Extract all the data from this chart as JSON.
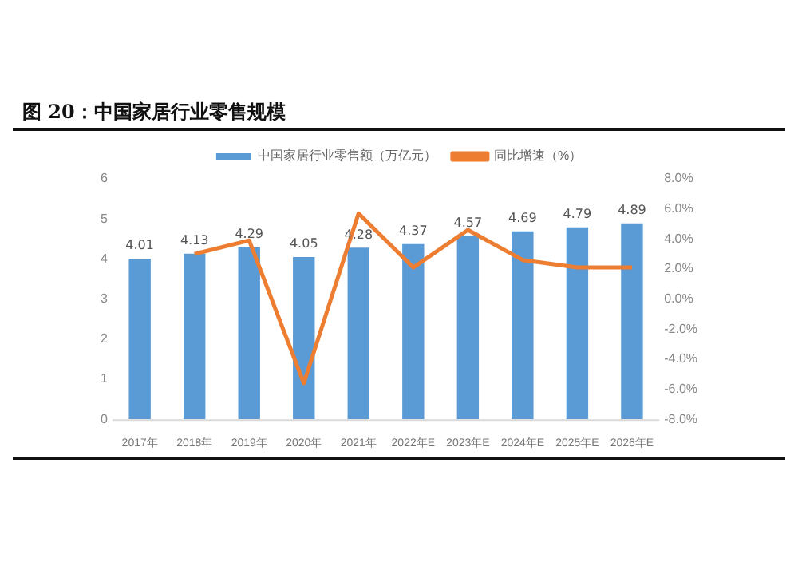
{
  "chart_data": {
    "type": "bar",
    "title": "图 20：中国家居行业零售规模",
    "categories": [
      "2017年",
      "2018年",
      "2019年",
      "2020年",
      "2021年",
      "2022年E",
      "2023年E",
      "2024年E",
      "2025年E",
      "2026年E"
    ],
    "series": [
      {
        "name": "中国家居行业零售额（万亿元）",
        "color": "#5b9bd5",
        "values": [
          4.01,
          4.13,
          4.29,
          4.05,
          4.28,
          4.37,
          4.57,
          4.69,
          4.79,
          4.89
        ],
        "value_labels": [
          "4.01",
          "4.13",
          "4.29",
          "4.05",
          "4.28",
          "4.37",
          "4.57",
          "4.69",
          "4.79",
          "4.89"
        ]
      },
      {
        "name": "同比增速（%）",
        "type": "line",
        "axis": "y2",
        "color": "#ed7d31",
        "values": [
          null,
          3.0,
          3.9,
          -5.6,
          5.7,
          2.1,
          4.6,
          2.6,
          2.1,
          2.1
        ]
      }
    ],
    "ylim": [
      0,
      6
    ],
    "yticks": [
      0,
      1,
      2,
      3,
      4,
      5,
      6
    ],
    "y2lim": [
      -8,
      8
    ],
    "y2ticks": [
      {
        "value": -8,
        "label": "-8.0%"
      },
      {
        "value": -6,
        "label": "-6.0%"
      },
      {
        "value": -4,
        "label": "-4.0%"
      },
      {
        "value": -2,
        "label": "-2.0%"
      },
      {
        "value": 0,
        "label": "0.0%"
      },
      {
        "value": 2,
        "label": "2.0%"
      },
      {
        "value": 4,
        "label": "4.0%"
      },
      {
        "value": 6,
        "label": "6.0%"
      },
      {
        "value": 8,
        "label": "8.0%"
      }
    ],
    "grid": false,
    "legend": "top",
    "marker": "none"
  }
}
